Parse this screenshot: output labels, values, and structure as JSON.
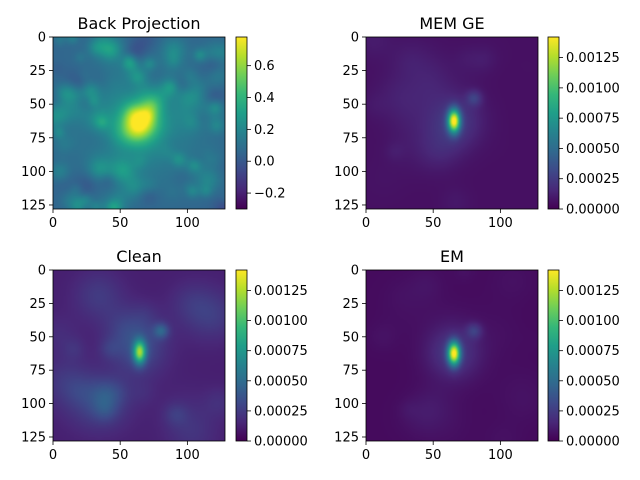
{
  "colormap": "viridis",
  "viridis_stops": [
    "#440154",
    "#482878",
    "#3e4989",
    "#31688e",
    "#26828e",
    "#1f9e89",
    "#35b779",
    "#6ece58",
    "#b5de2b",
    "#fde725"
  ],
  "chart_data": [
    {
      "type": "heatmap",
      "title": "Back Projection",
      "image_size": [
        128,
        128
      ],
      "xlim": [
        0,
        128
      ],
      "ylim": [
        128,
        0
      ],
      "x_ticks": [
        "0",
        "50",
        "100"
      ],
      "y_ticks": [
        "0",
        "25",
        "50",
        "75",
        "100",
        "125"
      ],
      "value_range": [
        -0.3,
        0.78
      ],
      "colorbar_ticks": [
        "−0.2",
        "0.0",
        "0.2",
        "0.4",
        "0.6"
      ],
      "colorbar_tick_values": [
        -0.2,
        0.0,
        0.2,
        0.4,
        0.6
      ],
      "peak_location": [
        64,
        63
      ],
      "peak_value": 0.78,
      "background_mean": 0.05,
      "texture": "speckle"
    },
    {
      "type": "heatmap",
      "title": "MEM GE",
      "image_size": [
        128,
        128
      ],
      "xlim": [
        0,
        128
      ],
      "ylim": [
        128,
        0
      ],
      "x_ticks": [
        "0",
        "50",
        "100"
      ],
      "y_ticks": [
        "0",
        "25",
        "50",
        "75",
        "100",
        "125"
      ],
      "value_range": [
        0,
        0.00142
      ],
      "colorbar_ticks": [
        "0.00000",
        "0.00025",
        "0.00050",
        "0.00075",
        "0.00100",
        "0.00125"
      ],
      "colorbar_tick_values": [
        0,
        0.00025,
        0.0005,
        0.00075,
        0.001,
        0.00125
      ],
      "peak_location": [
        65,
        62
      ],
      "peak_value": 0.00125,
      "background_mean": 6e-05,
      "texture": "faint"
    },
    {
      "type": "heatmap",
      "title": "Clean",
      "image_size": [
        128,
        128
      ],
      "xlim": [
        0,
        128
      ],
      "ylim": [
        128,
        0
      ],
      "x_ticks": [
        "0",
        "50",
        "100"
      ],
      "y_ticks": [
        "0",
        "25",
        "50",
        "75",
        "100",
        "125"
      ],
      "value_range": [
        0,
        0.00142
      ],
      "colorbar_ticks": [
        "0.00000",
        "0.00025",
        "0.00050",
        "0.00075",
        "0.00100",
        "0.00125"
      ],
      "colorbar_tick_values": [
        0,
        0.00025,
        0.0005,
        0.00075,
        0.001,
        0.00125
      ],
      "peak_location": [
        64,
        61
      ],
      "peak_value": 0.0009,
      "background_mean": 0.00012,
      "texture": "diffuse"
    },
    {
      "type": "heatmap",
      "title": "EM",
      "image_size": [
        128,
        128
      ],
      "xlim": [
        0,
        128
      ],
      "ylim": [
        128,
        0
      ],
      "x_ticks": [
        "0",
        "50",
        "100"
      ],
      "y_ticks": [
        "0",
        "25",
        "50",
        "75",
        "100",
        "125"
      ],
      "value_range": [
        0,
        0.00142
      ],
      "colorbar_ticks": [
        "0.00000",
        "0.00025",
        "0.00050",
        "0.00075",
        "0.00100",
        "0.00125"
      ],
      "colorbar_tick_values": [
        0,
        0.00025,
        0.0005,
        0.00075,
        0.001,
        0.00125
      ],
      "peak_location": [
        65,
        62
      ],
      "peak_value": 0.00125,
      "background_mean": 4e-05,
      "texture": "faint"
    }
  ]
}
